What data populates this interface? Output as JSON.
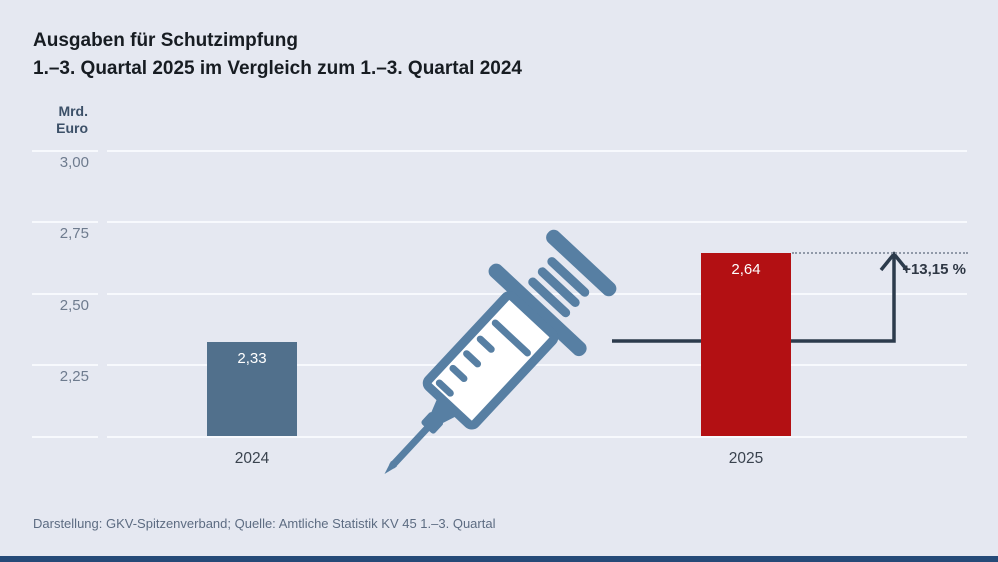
{
  "title": {
    "line1": "Ausgaben für Schutzimpfung",
    "line2": "1.–3. Quartal 2025 im Vergleich zum 1.–3. Quartal 2024"
  },
  "axis": {
    "unit_line1": "Mrd.",
    "unit_line2": "Euro"
  },
  "chart_data": {
    "type": "bar",
    "title": "Ausgaben für Schutzimpfung",
    "subtitle": "1.–3. Quartal 2025 im Vergleich zum 1.–3. Quartal 2024",
    "ylabel": "Mrd. Euro",
    "categories": [
      "2024",
      "2025"
    ],
    "values": [
      2.33,
      2.64
    ],
    "value_labels": [
      "2,33",
      "2,64"
    ],
    "bar_colors": [
      "#51708c",
      "#b31013"
    ],
    "ylim": [
      2.0,
      3.0
    ],
    "yticks": [
      2.25,
      2.5,
      2.75,
      3.0
    ],
    "ytick_labels": [
      "2,25",
      "2,50",
      "2,75",
      "3,00"
    ],
    "grid": true,
    "legend": "none",
    "change_pct": "+13,15 %",
    "annotation": "Arrow from 2024 level up to 2025 level with dotted guide line",
    "source": "Darstellung: GKV-Spitzenverband; Quelle: Amtliche Statistik KV 45 1.–3. Quartal"
  },
  "footer": {
    "source": "Darstellung: GKV-Spitzenverband; Quelle: Amtliche Statistik KV 45 1.–3. Quartal"
  },
  "colors": {
    "background": "#e5e8f1",
    "gridline": "#f7f9fd",
    "bar_2024": "#51708c",
    "bar_2025": "#b31013",
    "syringe": "#577fa3",
    "arrow": "#2c3b4c",
    "bottom_bar": "#254a78"
  },
  "icons": {
    "syringe": "syringe-icon",
    "arrow_up": "arrow-up-icon"
  }
}
